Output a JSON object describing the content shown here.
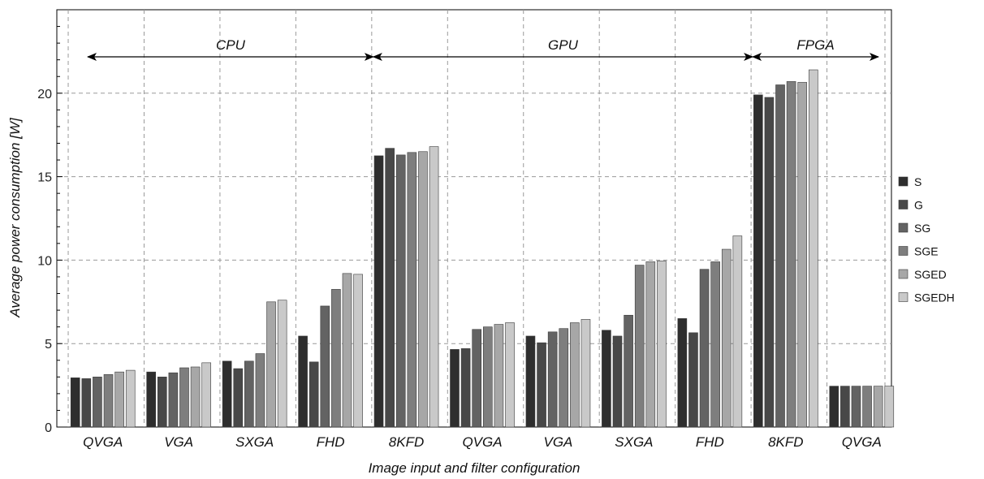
{
  "chart_data": {
    "type": "bar",
    "xlabel": "Image input and filter configuration",
    "ylabel": "Average power consumption [W]",
    "ylim": [
      0,
      25
    ],
    "yticks": [
      0,
      5,
      10,
      15,
      20
    ],
    "grid": true,
    "legend_position": "right",
    "categories": [
      "QVGA",
      "VGA",
      "SXGA",
      "FHD",
      "8KFD",
      "QVGA",
      "VGA",
      "SXGA",
      "FHD",
      "8KFD",
      "QVGA"
    ],
    "groups": [
      {
        "label": "CPU",
        "categories": [
          0,
          1,
          2,
          3,
          4
        ]
      },
      {
        "label": "GPU",
        "categories": [
          5,
          6,
          7,
          8,
          9
        ]
      },
      {
        "label": "FPGA",
        "categories": [
          10
        ]
      }
    ],
    "series": [
      {
        "name": "S",
        "color": "#2e2e2e",
        "values": [
          2.95,
          3.3,
          3.95,
          5.45,
          16.25,
          4.65,
          5.45,
          5.8,
          6.5,
          19.9,
          2.45
        ]
      },
      {
        "name": "G",
        "color": "#484848",
        "values": [
          2.9,
          3.0,
          3.5,
          3.9,
          16.7,
          4.7,
          5.05,
          5.45,
          5.65,
          19.75,
          2.45
        ]
      },
      {
        "name": "SG",
        "color": "#636363",
        "values": [
          3.0,
          3.25,
          3.95,
          7.25,
          16.3,
          5.85,
          5.7,
          6.7,
          9.45,
          20.5,
          2.45
        ]
      },
      {
        "name": "SGE",
        "color": "#7e7e7e",
        "values": [
          3.15,
          3.55,
          4.4,
          8.25,
          16.45,
          6.0,
          5.9,
          9.7,
          9.9,
          20.7,
          2.45
        ]
      },
      {
        "name": "SGED",
        "color": "#a7a7a7",
        "values": [
          3.3,
          3.6,
          7.5,
          9.2,
          16.5,
          6.15,
          6.25,
          9.9,
          10.65,
          20.65,
          2.45
        ]
      },
      {
        "name": "SGEDH",
        "color": "#c9c9c9",
        "values": [
          3.4,
          3.85,
          7.6,
          9.15,
          16.8,
          6.25,
          6.45,
          9.95,
          11.45,
          21.4,
          2.45
        ]
      }
    ]
  }
}
